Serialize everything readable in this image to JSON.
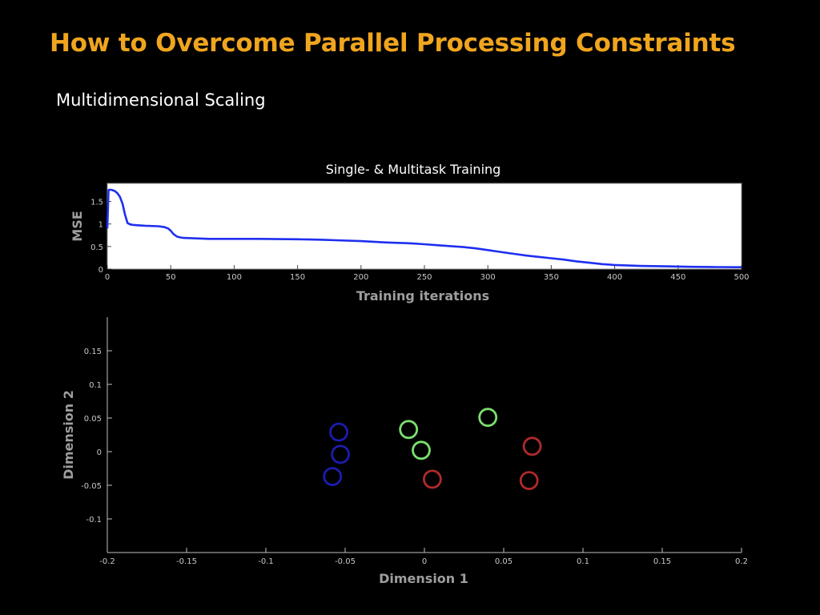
{
  "slide": {
    "title": "How to Overcome Parallel Processing Constraints",
    "subtitle": "Multidimensional Scaling",
    "title_color": "#f0a51e",
    "background": "#000000"
  },
  "chart_data": [
    {
      "type": "line",
      "title": "Single- & Multitask Training",
      "xlabel": "Training iterations",
      "ylabel": "MSE",
      "xlim": [
        0,
        500
      ],
      "ylim": [
        0,
        1.9
      ],
      "xticks": [
        0,
        50,
        100,
        150,
        200,
        250,
        300,
        350,
        400,
        450,
        500
      ],
      "yticks": [
        0,
        0.5,
        1,
        1.5
      ],
      "yticklabels": [
        "0",
        "0.5",
        "1",
        "1.5"
      ],
      "background": "#ffffff",
      "grid": false,
      "series": [
        {
          "color": "#1f2ff0",
          "x": [
            0,
            1,
            2,
            4,
            6,
            8,
            10,
            12,
            14,
            16,
            18,
            20,
            25,
            30,
            40,
            45,
            48,
            50,
            52,
            55,
            58,
            60,
            70,
            80,
            100,
            120,
            150,
            170,
            180,
            200,
            220,
            240,
            250,
            260,
            270,
            280,
            290,
            300,
            310,
            320,
            330,
            340,
            350,
            360,
            370,
            380,
            390,
            400,
            420,
            440,
            460,
            480,
            500
          ],
          "y": [
            0.9,
            1.75,
            1.76,
            1.75,
            1.73,
            1.68,
            1.6,
            1.45,
            1.2,
            1.02,
            0.99,
            0.98,
            0.97,
            0.96,
            0.95,
            0.93,
            0.9,
            0.85,
            0.78,
            0.72,
            0.7,
            0.69,
            0.68,
            0.67,
            0.67,
            0.67,
            0.66,
            0.65,
            0.64,
            0.62,
            0.59,
            0.57,
            0.55,
            0.53,
            0.51,
            0.49,
            0.46,
            0.42,
            0.38,
            0.34,
            0.3,
            0.27,
            0.24,
            0.21,
            0.17,
            0.14,
            0.11,
            0.09,
            0.07,
            0.06,
            0.05,
            0.045,
            0.04
          ]
        }
      ]
    },
    {
      "type": "scatter",
      "title": "",
      "xlabel": "Dimension 1",
      "ylabel": "Dimension 2",
      "xlim": [
        -0.2,
        0.2
      ],
      "ylim": [
        -0.15,
        0.2
      ],
      "xticks": [
        -0.2,
        -0.15,
        -0.1,
        -0.05,
        0,
        0.05,
        0.1,
        0.15,
        0.2
      ],
      "xticklabels": [
        "-0.2",
        "-0.15",
        "-0.1",
        "-0.05",
        "0",
        "0.05",
        "0.1",
        "0.15",
        "0.2"
      ],
      "yticks": [
        -0.1,
        -0.05,
        0,
        0.05,
        0.1,
        0.15
      ],
      "yticklabels": [
        "-0.1",
        "-0.05",
        "0",
        "0.05",
        "0.1",
        "0.15"
      ],
      "background": "#000000",
      "marker": "circle-open",
      "grid": false,
      "series": [
        {
          "color": "#1c1cb0",
          "x": [
            -0.054,
            -0.053,
            -0.058
          ],
          "y": [
            0.029,
            -0.004,
            -0.037
          ]
        },
        {
          "color": "#7be06e",
          "x": [
            -0.01,
            -0.002,
            0.04
          ],
          "y": [
            0.033,
            0.002,
            0.051
          ]
        },
        {
          "color": "#b02a2a",
          "x": [
            0.005,
            0.068,
            0.066
          ],
          "y": [
            -0.041,
            0.008,
            -0.043
          ]
        }
      ]
    }
  ]
}
